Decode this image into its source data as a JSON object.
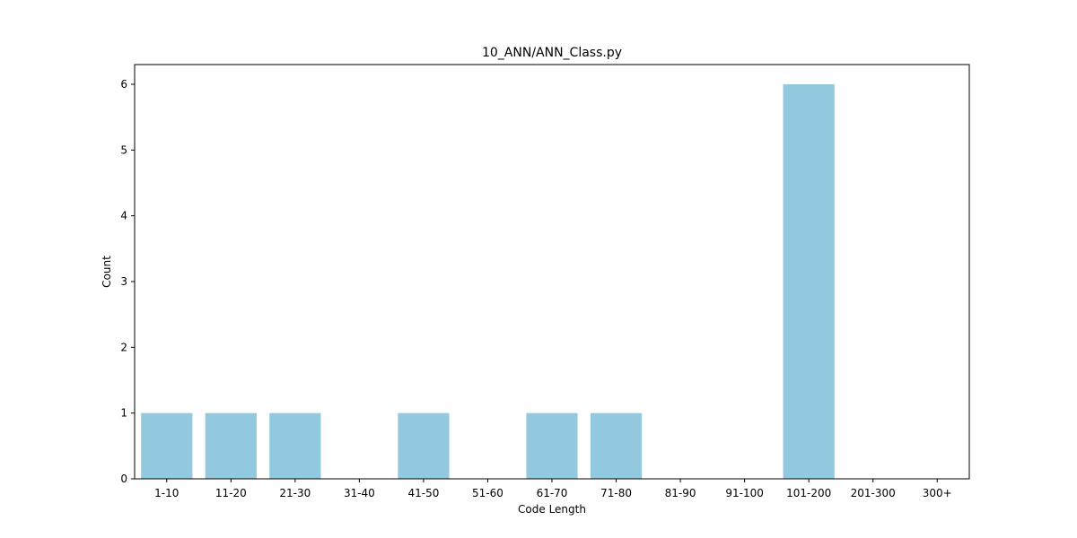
{
  "chart_data": {
    "type": "bar",
    "title": "10_ANN/ANN_Class.py",
    "xlabel": "Code Length",
    "ylabel": "Count",
    "categories": [
      "1-10",
      "11-20",
      "21-30",
      "31-40",
      "41-50",
      "51-60",
      "61-70",
      "71-80",
      "81-90",
      "91-100",
      "101-200",
      "201-300",
      "300+"
    ],
    "values": [
      1,
      1,
      1,
      0,
      1,
      0,
      1,
      1,
      0,
      0,
      6,
      0,
      0
    ],
    "ylim": [
      0,
      6.3
    ],
    "yticks": [
      0,
      1,
      2,
      3,
      4,
      5,
      6
    ],
    "grid": false,
    "bar_color": "#92c9df"
  }
}
